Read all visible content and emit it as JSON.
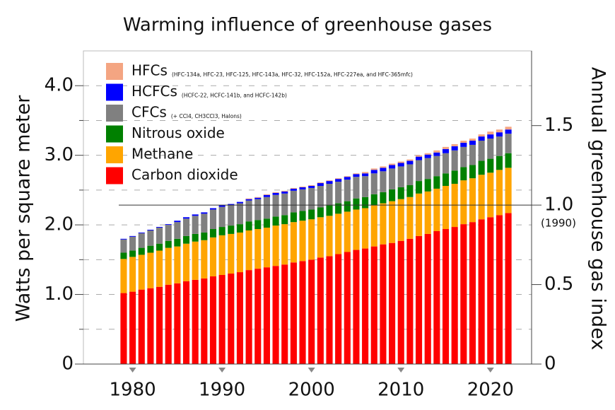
{
  "chart_data": {
    "type": "stacked_bar",
    "title": "Warming influence of greenhouse gases",
    "y_label": "Watts per square meter",
    "y2_label": "Annual greenhouse gas index",
    "y2_annotation": "(1990)",
    "x": [
      1979,
      1980,
      1981,
      1982,
      1983,
      1984,
      1985,
      1986,
      1987,
      1988,
      1989,
      1990,
      1991,
      1992,
      1993,
      1994,
      1995,
      1996,
      1997,
      1998,
      1999,
      2000,
      2001,
      2002,
      2003,
      2004,
      2005,
      2006,
      2007,
      2008,
      2009,
      2010,
      2011,
      2012,
      2013,
      2014,
      2015,
      2016,
      2017,
      2018,
      2019,
      2020,
      2021,
      2022
    ],
    "xlim": [
      1974.5,
      2024.6
    ],
    "xticks": [
      1980,
      1990,
      2000,
      2010,
      2020
    ],
    "ylim": [
      0,
      4.5
    ],
    "yticks": [
      0,
      {
        "value": 1,
        "label": "1.0"
      },
      {
        "value": 2,
        "label": "2.0"
      },
      {
        "value": 3,
        "label": "3.0"
      },
      {
        "value": 4,
        "label": "4.0"
      }
    ],
    "minor_yticks": [
      0.5,
      1.5,
      2.5,
      3.5
    ],
    "y2lim": [
      0,
      1.97
    ],
    "y2ticks": [
      0,
      0.5,
      {
        "value": 1,
        "label": "1.0"
      },
      1.5
    ],
    "grid": true,
    "series": [
      {
        "name": "Carbon dioxide",
        "color": "#ff0000",
        "values": [
          1.02,
          1.04,
          1.07,
          1.09,
          1.11,
          1.14,
          1.16,
          1.19,
          1.21,
          1.23,
          1.26,
          1.28,
          1.3,
          1.32,
          1.35,
          1.37,
          1.39,
          1.41,
          1.43,
          1.46,
          1.48,
          1.5,
          1.53,
          1.55,
          1.58,
          1.61,
          1.64,
          1.66,
          1.69,
          1.72,
          1.74,
          1.77,
          1.8,
          1.84,
          1.87,
          1.91,
          1.94,
          1.97,
          2.01,
          2.04,
          2.08,
          2.11,
          2.14,
          2.17
        ]
      },
      {
        "name": "Methane",
        "color": "#ffa500",
        "values": [
          0.49,
          0.5,
          0.5,
          0.51,
          0.52,
          0.53,
          0.53,
          0.54,
          0.55,
          0.55,
          0.56,
          0.57,
          0.57,
          0.57,
          0.57,
          0.57,
          0.57,
          0.58,
          0.58,
          0.58,
          0.58,
          0.58,
          0.58,
          0.58,
          0.58,
          0.58,
          0.58,
          0.58,
          0.59,
          0.59,
          0.6,
          0.6,
          0.6,
          0.61,
          0.61,
          0.61,
          0.62,
          0.62,
          0.63,
          0.63,
          0.64,
          0.64,
          0.65,
          0.65
        ]
      },
      {
        "name": "Nitrous oxide",
        "color": "#008000",
        "values": [
          0.09,
          0.09,
          0.1,
          0.1,
          0.1,
          0.1,
          0.11,
          0.11,
          0.11,
          0.11,
          0.12,
          0.12,
          0.12,
          0.12,
          0.13,
          0.13,
          0.13,
          0.13,
          0.13,
          0.14,
          0.14,
          0.14,
          0.14,
          0.15,
          0.15,
          0.15,
          0.16,
          0.16,
          0.16,
          0.16,
          0.17,
          0.17,
          0.17,
          0.18,
          0.18,
          0.18,
          0.18,
          0.19,
          0.19,
          0.19,
          0.2,
          0.2,
          0.2,
          0.21
        ]
      },
      {
        "name": "CFCs",
        "detail": "(+ CCl4, CH3CCl3, Halons)",
        "color": "#808080",
        "values": [
          0.19,
          0.2,
          0.21,
          0.22,
          0.23,
          0.23,
          0.24,
          0.25,
          0.26,
          0.27,
          0.28,
          0.29,
          0.29,
          0.3,
          0.3,
          0.3,
          0.31,
          0.31,
          0.31,
          0.31,
          0.31,
          0.31,
          0.31,
          0.31,
          0.31,
          0.31,
          0.31,
          0.3,
          0.3,
          0.3,
          0.3,
          0.3,
          0.3,
          0.3,
          0.3,
          0.29,
          0.29,
          0.29,
          0.29,
          0.29,
          0.29,
          0.29,
          0.28,
          0.28
        ]
      },
      {
        "name": "HCFCs",
        "detail": "(HCFC-22, HCFC-141b, and HCFC-142b)",
        "color": "#0000ff",
        "values": [
          0.01,
          0.01,
          0.01,
          0.01,
          0.01,
          0.01,
          0.02,
          0.02,
          0.02,
          0.02,
          0.02,
          0.02,
          0.02,
          0.02,
          0.02,
          0.02,
          0.03,
          0.03,
          0.03,
          0.03,
          0.03,
          0.03,
          0.04,
          0.04,
          0.04,
          0.04,
          0.04,
          0.04,
          0.05,
          0.05,
          0.05,
          0.05,
          0.05,
          0.05,
          0.05,
          0.05,
          0.06,
          0.06,
          0.06,
          0.06,
          0.06,
          0.06,
          0.06,
          0.06
        ]
      },
      {
        "name": "HFCs",
        "detail": "(HFC-134a, HFC-23, HFC-125, HFC-143a, HFC-32, HFC-152a, HFC-227ea, and HFC-365mfc)",
        "color": "#f4a582",
        "values": [
          0,
          0,
          0,
          0,
          0,
          0,
          0,
          0,
          0,
          0,
          0,
          0,
          0,
          0,
          0.01,
          0.01,
          0.01,
          0.01,
          0.01,
          0.01,
          0.01,
          0.01,
          0.01,
          0.01,
          0.01,
          0.01,
          0.01,
          0.02,
          0.02,
          0.02,
          0.02,
          0.02,
          0.02,
          0.02,
          0.02,
          0.03,
          0.03,
          0.03,
          0.03,
          0.03,
          0.03,
          0.04,
          0.04,
          0.04
        ]
      }
    ]
  }
}
